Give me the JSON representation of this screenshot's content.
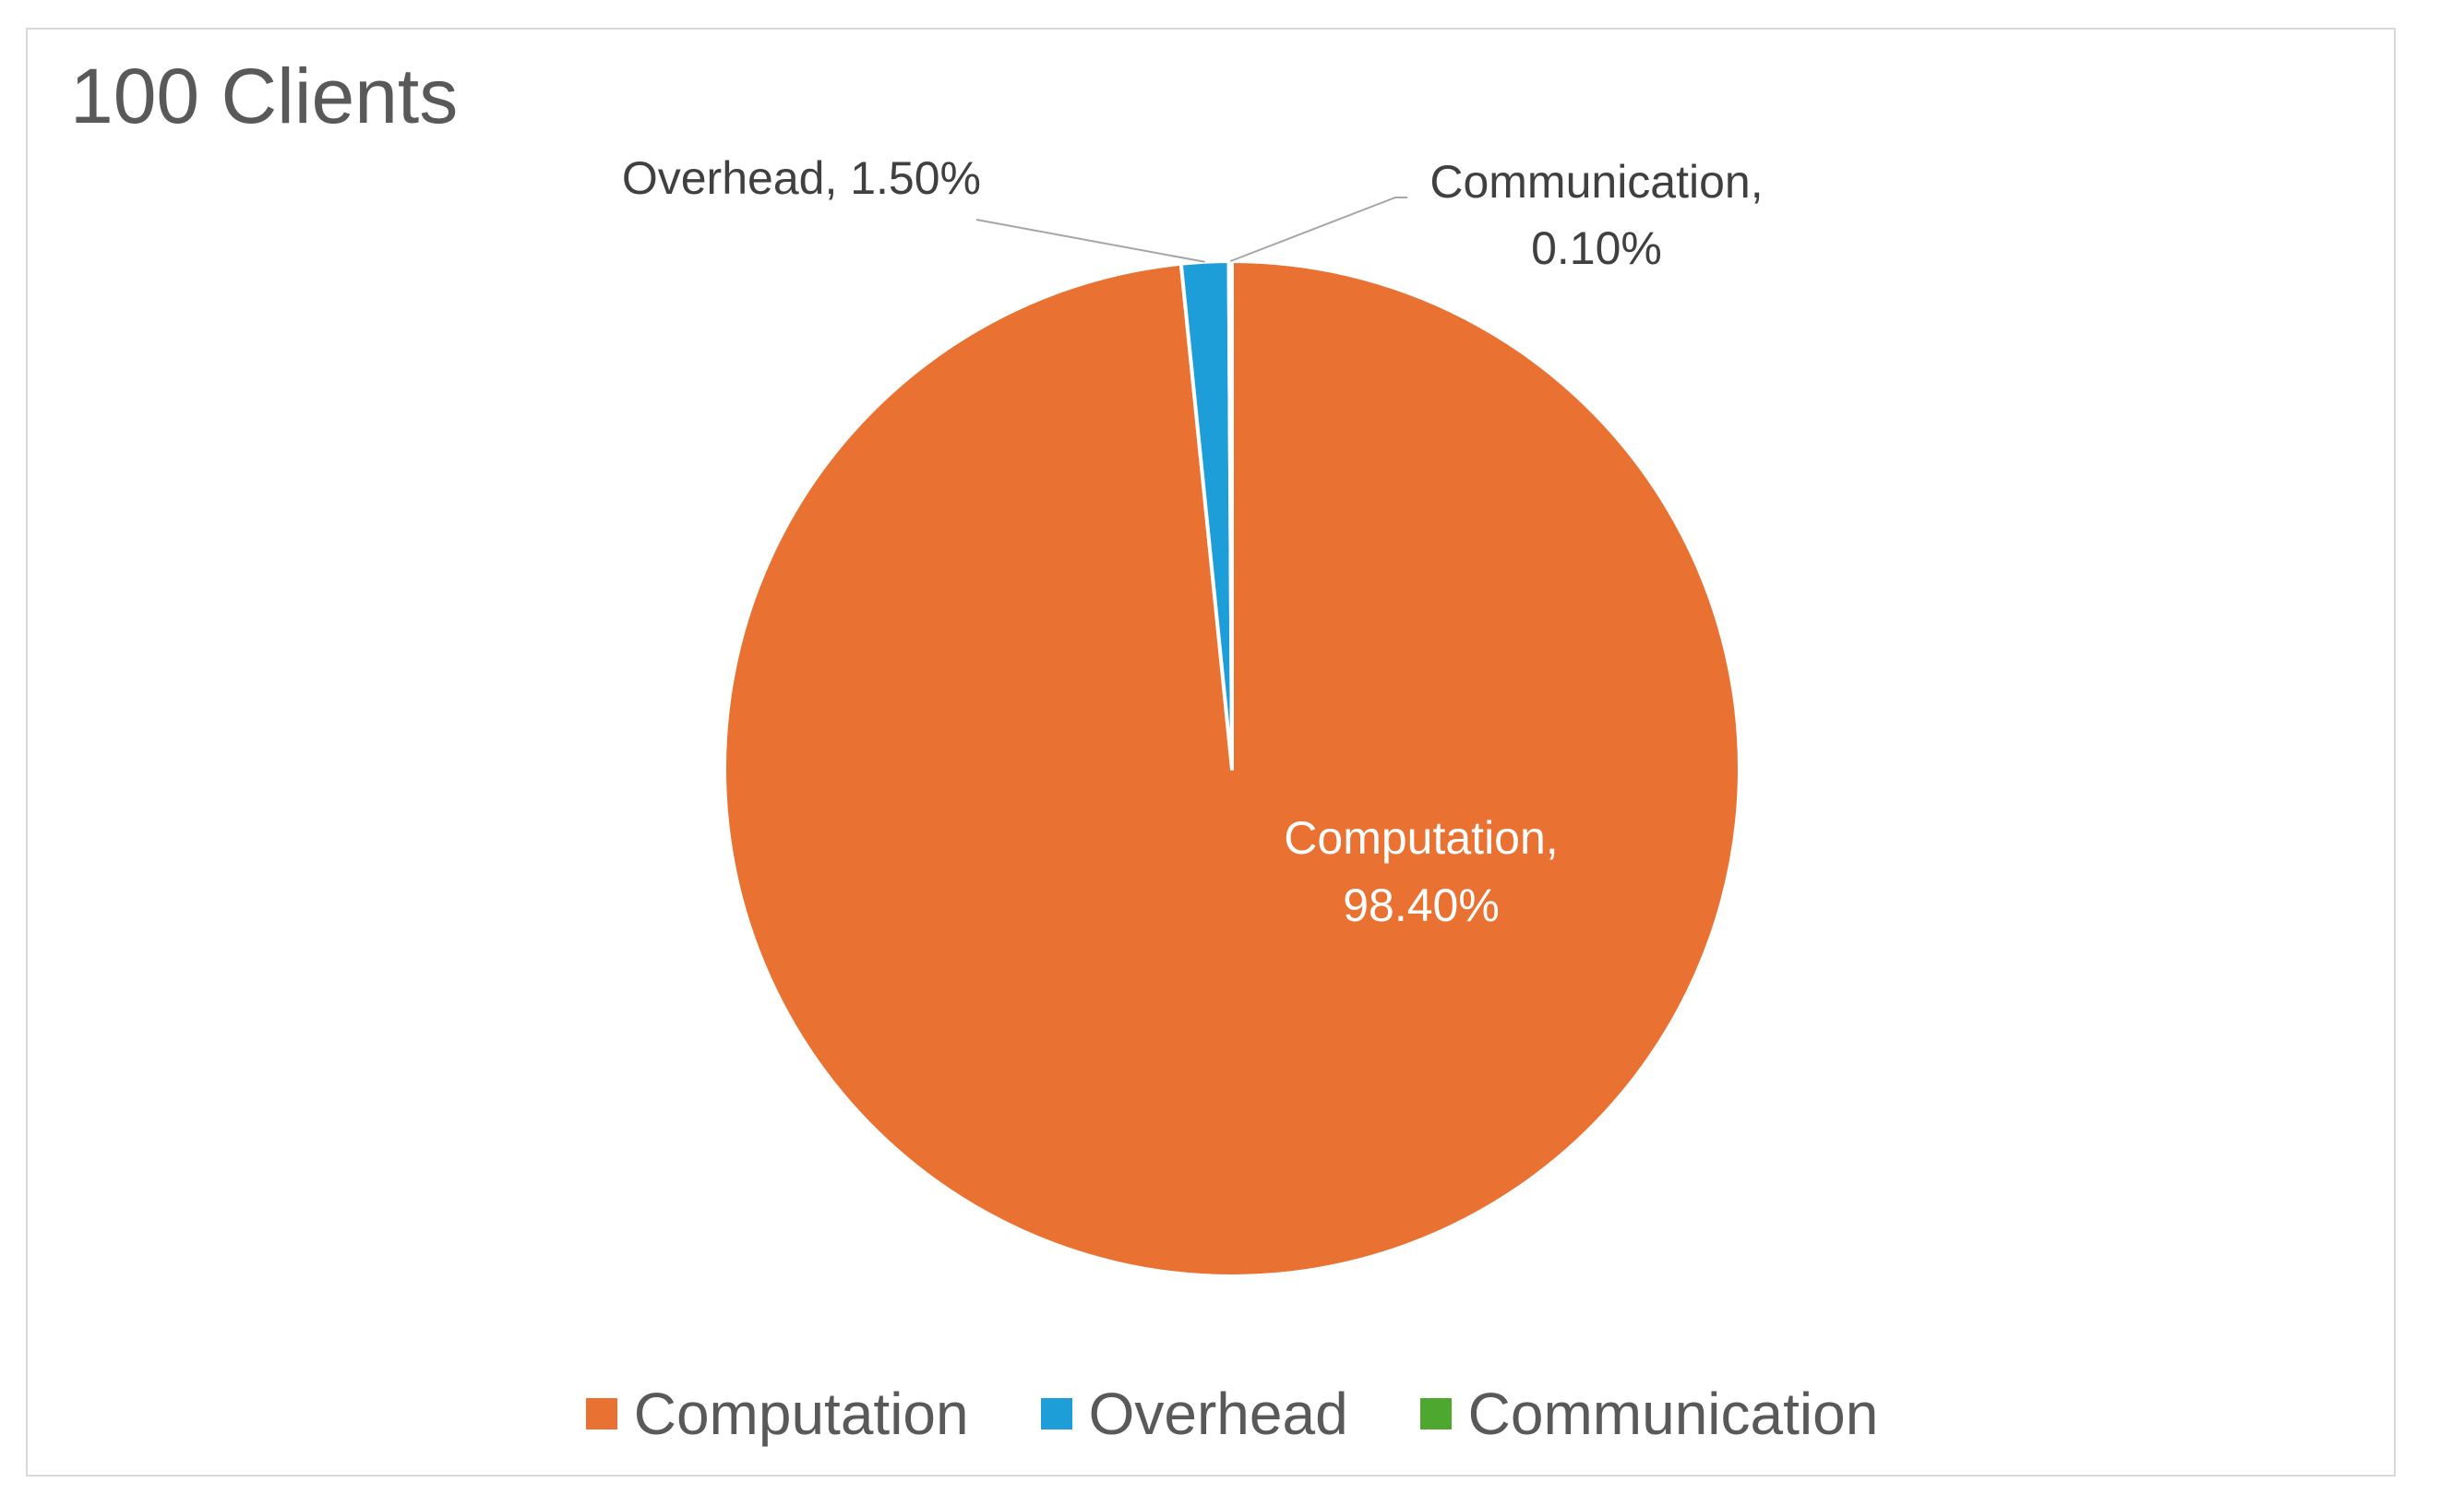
{
  "chart_data": {
    "type": "pie",
    "title": "100 Clients",
    "categories": [
      "Computation",
      "Overhead",
      "Communication"
    ],
    "values": [
      98.4,
      1.5,
      0.1
    ],
    "value_labels": [
      "98.40%",
      "1.50%",
      "0.10%"
    ],
    "data_labels": {
      "computation": {
        "line1": "Computation,",
        "line2": "98.40%"
      },
      "overhead": {
        "line1": "Overhead, 1.50%"
      },
      "communication": {
        "line1": "Communication,",
        "line2": "0.10%"
      }
    },
    "colors": [
      "#e97132",
      "#1d9ed9",
      "#4ea72e"
    ],
    "legend_placement": "bottom"
  },
  "legend": {
    "items": [
      "Computation",
      "Overhead",
      "Communication"
    ]
  }
}
